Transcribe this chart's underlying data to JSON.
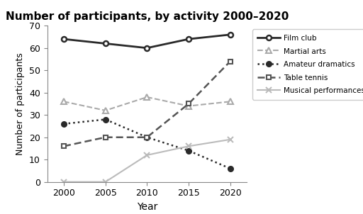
{
  "title": "Number of participants, by activity 2000–2020",
  "xlabel": "Year",
  "ylabel": "Number of participants",
  "years": [
    2000,
    2005,
    2010,
    2015,
    2020
  ],
  "series": {
    "Film club": [
      64,
      62,
      60,
      64,
      66
    ],
    "Martial arts": [
      36,
      32,
      38,
      34,
      36
    ],
    "Amateur dramatics": [
      26,
      28,
      20,
      14,
      6
    ],
    "Table tennis": [
      16,
      20,
      20,
      35,
      54
    ],
    "Musical performances": [
      0,
      0,
      12,
      16,
      19
    ]
  },
  "styles": {
    "Film club": {
      "color": "#2a2a2a",
      "linestyle": "-",
      "marker": "o",
      "markersize": 5,
      "linewidth": 2.0,
      "markerfacecolor": "white",
      "markeredgewidth": 1.8
    },
    "Martial arts": {
      "color": "#aaaaaa",
      "linestyle": "--",
      "marker": "^",
      "markersize": 6,
      "linewidth": 1.5,
      "markerfacecolor": "white",
      "markeredgewidth": 1.5
    },
    "Amateur dramatics": {
      "color": "#2a2a2a",
      "linestyle": ":",
      "marker": "o",
      "markersize": 5,
      "linewidth": 1.8,
      "markerfacecolor": "#2a2a2a",
      "markeredgewidth": 1.5
    },
    "Table tennis": {
      "color": "#555555",
      "linestyle": "--",
      "marker": "s",
      "markersize": 5,
      "linewidth": 1.8,
      "markerfacecolor": "white",
      "markeredgewidth": 1.5
    },
    "Musical performances": {
      "color": "#bbbbbb",
      "linestyle": "-",
      "marker": "x",
      "markersize": 6,
      "linewidth": 1.5,
      "markerfacecolor": "#bbbbbb",
      "markeredgewidth": 1.5
    }
  },
  "ylim": [
    0,
    70
  ],
  "yticks": [
    0,
    10,
    20,
    30,
    40,
    50,
    60,
    70
  ],
  "figsize": [
    5.12,
    3.02
  ],
  "dpi": 100,
  "background": "#ffffff"
}
